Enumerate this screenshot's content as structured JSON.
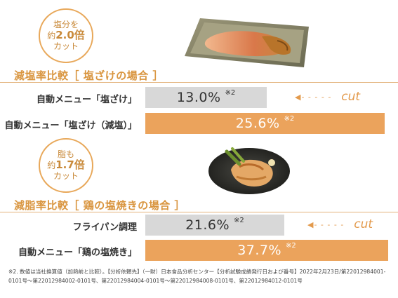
{
  "sections": [
    {
      "badge": {
        "line1": "塩分を",
        "line2_prefix": "約",
        "line2_value": "2.0倍",
        "line3": "カット"
      },
      "heading": "減塩率比較［ 塩ざけの場合 ］",
      "photo_icon": "salted-salmon-plate-photo",
      "rows": [
        {
          "label": "自動メニュー「塩ざけ」",
          "value_text": "13.0%",
          "note": "※2",
          "style": "gray"
        },
        {
          "label": "自動メニュー「塩ざけ（減塩）」",
          "value_text": "25.6%",
          "note": "※2",
          "style": "orange"
        }
      ],
      "cut_label": "cut"
    },
    {
      "badge": {
        "line1": "脂も",
        "line2_prefix": "約",
        "line2_value": "1.7倍",
        "line3": "カット"
      },
      "heading": "減脂率比較［ 鶏の塩焼きの場合 ］",
      "photo_icon": "grilled-chicken-plate-photo",
      "rows": [
        {
          "label": "フライパン調理",
          "value_text": "21.6%",
          "note": "※2",
          "style": "gray"
        },
        {
          "label": "自動メニュー「鶏の塩焼き」",
          "value_text": "37.7%",
          "note": "※2",
          "style": "orange"
        }
      ],
      "cut_label": "cut"
    }
  ],
  "footnote": "※2. 数値は当社換算値（加熱前と比較）。【分析依頼先】（一財）日本食品分析センター【分析試験成績発行日および番号】2022年2月23日/第22012984001-0101号～第22012984002-0101号、第22012984004-0101号～第22012984008-0101号、第22012984012-0101号",
  "colors": {
    "accent": "#eba35c",
    "accent_text": "#d9953f",
    "gray_bar": "#d8d8d8"
  },
  "chart_data": [
    {
      "type": "bar",
      "orientation": "horizontal",
      "title": "減塩率比較［ 塩ざけの場合 ］",
      "categories": [
        "自動メニュー「塩ざけ」",
        "自動メニュー「塩ざけ（減塩）」"
      ],
      "values": [
        13.0,
        25.6
      ],
      "unit": "%",
      "xlim": [
        0,
        26
      ]
    },
    {
      "type": "bar",
      "orientation": "horizontal",
      "title": "減脂率比較［ 鶏の塩焼きの場合 ］",
      "categories": [
        "フライパン調理",
        "自動メニュー「鶏の塩焼き」"
      ],
      "values": [
        21.6,
        37.7
      ],
      "unit": "%",
      "xlim": [
        0,
        37.7
      ]
    }
  ]
}
